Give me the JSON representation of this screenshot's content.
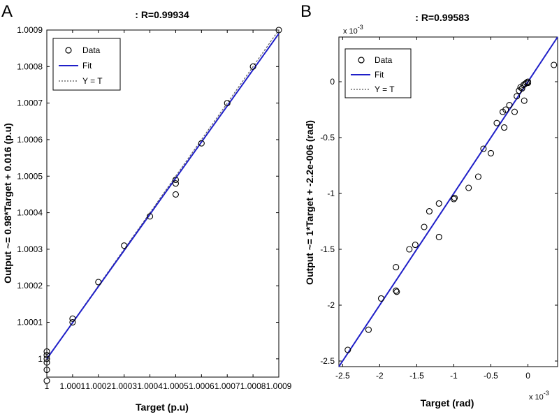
{
  "panels": [
    {
      "letter": "A",
      "title": ": R=0.99934",
      "xlabel": "Target (p.u)",
      "ylabel": "Output ~= 0.98*Target + 0.016 (p.u)",
      "legend": {
        "data": "Data",
        "fit": "Fit",
        "yt": "Y = T"
      }
    },
    {
      "letter": "B",
      "title": ": R=0.99583",
      "xlabel": "Target (rad)",
      "ylabel": "Output ~= 1*Target + -2.2e-006 (rad)",
      "legend": {
        "data": "Data",
        "fit": "Fit",
        "yt": "Y = T"
      },
      "x_exponent": "x 10",
      "y_exponent": "x 10",
      "exponent_power": "-3"
    }
  ],
  "colors": {
    "fit": "#1f1fc8",
    "ident": "#555555",
    "axes": "#000000",
    "marker": "#000000"
  },
  "chart_data": [
    {
      "type": "scatter",
      "title": ": R=0.99934",
      "xlabel": "Target (p.u)",
      "ylabel": "Output ~= 0.98*Target + 0.016 (p.u)",
      "xlim": [
        1.0,
        1.0009
      ],
      "ylim": [
        0.99995,
        1.0009
      ],
      "xticks": [
        1.0,
        1.0001,
        1.0002,
        1.0003,
        1.0004,
        1.0005,
        1.0006,
        1.0007,
        1.0008,
        1.0009
      ],
      "xtick_labels": [
        "1",
        "1.0001",
        "1.0002",
        "1.0003",
        "1.0004",
        "1.0005",
        "1.0006",
        "1.0007",
        "1.0008",
        "1.0009"
      ],
      "yticks": [
        1.0,
        1.0001,
        1.0002,
        1.0003,
        1.0004,
        1.0005,
        1.0006,
        1.0007,
        1.0008,
        1.0009
      ],
      "ytick_labels": [
        "1",
        "1.0001",
        "1.0002",
        "1.0003",
        "1.0004",
        "1.0005",
        "1.0006",
        "1.0007",
        "1.0008",
        "1.0009"
      ],
      "points": [
        [
          1.0,
          0.99994
        ],
        [
          1.0,
          0.99997
        ],
        [
          1.0,
          0.99999
        ],
        [
          1.0,
          1.0
        ],
        [
          1.0,
          1.00001
        ],
        [
          1.0,
          1.00002
        ],
        [
          1.0001,
          1.0001
        ],
        [
          1.0001,
          1.00011
        ],
        [
          1.0002,
          1.00021
        ],
        [
          1.0003,
          1.00031
        ],
        [
          1.0004,
          1.00039
        ],
        [
          1.0005,
          1.00049
        ],
        [
          1.0005,
          1.00048
        ],
        [
          1.0005,
          1.00045
        ],
        [
          1.0006,
          1.00059
        ],
        [
          1.0007,
          1.0007
        ],
        [
          1.0008,
          1.0008
        ],
        [
          1.0009,
          1.0009
        ]
      ],
      "fit_line": [
        [
          1.0,
          1.0
        ],
        [
          1.0009,
          1.00089
        ]
      ],
      "identity_line": [
        [
          1.0,
          1.0
        ],
        [
          1.0009,
          1.0009
        ]
      ],
      "legend_position": "top-left",
      "grid": false
    },
    {
      "type": "scatter",
      "title": ": R=0.99583",
      "xlabel": "Target (rad)",
      "ylabel": "Output ~= 1*Target + -2.2e-006 (rad)",
      "xlim": [
        -2.55,
        0.4
      ],
      "ylim": [
        -2.55,
        0.4
      ],
      "xticks": [
        -2.5,
        -2,
        -1.5,
        -1,
        -0.5,
        0
      ],
      "xtick_labels": [
        "-2.5",
        "-2",
        "-1.5",
        "-1",
        "-0.5",
        "0"
      ],
      "yticks": [
        -2.5,
        -2,
        -1.5,
        -1,
        -0.5,
        0
      ],
      "ytick_labels": [
        "-2.5",
        "-2",
        "-1.5",
        "-1",
        "-0.5",
        "0"
      ],
      "points": [
        [
          -2.43,
          -2.4
        ],
        [
          -2.15,
          -2.22
        ],
        [
          -1.98,
          -1.94
        ],
        [
          -1.78,
          -1.66
        ],
        [
          -1.78,
          -1.87
        ],
        [
          -1.77,
          -1.88
        ],
        [
          -1.6,
          -1.5
        ],
        [
          -1.52,
          -1.46
        ],
        [
          -1.4,
          -1.3
        ],
        [
          -1.33,
          -1.16
        ],
        [
          -1.2,
          -1.09
        ],
        [
          -1.2,
          -1.39
        ],
        [
          -1.0,
          -1.05
        ],
        [
          -0.99,
          -1.04
        ],
        [
          -0.8,
          -0.95
        ],
        [
          -0.67,
          -0.85
        ],
        [
          -0.6,
          -0.6
        ],
        [
          -0.5,
          -0.64
        ],
        [
          -0.42,
          -0.37
        ],
        [
          -0.34,
          -0.27
        ],
        [
          -0.3,
          -0.25
        ],
        [
          -0.32,
          -0.41
        ],
        [
          -0.25,
          -0.21
        ],
        [
          -0.18,
          -0.27
        ],
        [
          -0.15,
          -0.13
        ],
        [
          -0.12,
          -0.08
        ],
        [
          -0.1,
          -0.05
        ],
        [
          -0.08,
          -0.06
        ],
        [
          -0.06,
          -0.03
        ],
        [
          -0.05,
          -0.17
        ],
        [
          -0.04,
          -0.02
        ],
        [
          -0.02,
          -0.01
        ],
        [
          0.0,
          -0.01
        ],
        [
          0.0,
          0.0
        ],
        [
          0.35,
          0.15
        ]
      ],
      "fit_line": [
        [
          -2.55,
          -2.55
        ],
        [
          0.4,
          0.4
        ]
      ],
      "identity_line": [
        [
          -2.55,
          -2.55
        ],
        [
          0.4,
          0.4
        ]
      ],
      "legend_position": "top-left",
      "grid": false
    }
  ]
}
